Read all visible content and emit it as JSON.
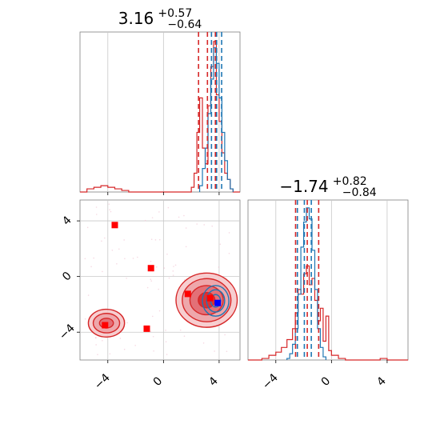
{
  "chart_data": {
    "type": "corner",
    "panels": [
      {
        "id": "top-left",
        "type": "histogram",
        "title": {
          "base": "3.16",
          "plus": "+0.57",
          "minus": "−0.64"
        },
        "xlim": [
          -6,
          5.5
        ],
        "show_y_ticks": false,
        "grid": true,
        "series": [
          {
            "name": "",
            "color": "#d62728",
            "bin_edges": [
              -6,
              -5.5,
              -5,
              -4.5,
              -4,
              -3.5,
              -3,
              -2.5,
              -2,
              -1.5,
              -1,
              -0.5,
              0,
              0.5,
              1,
              1.5,
              2,
              2.2,
              2.4,
              2.6,
              2.8,
              3.0,
              3.2,
              3.4,
              3.6,
              3.8,
              4.0,
              4.2,
              4.4,
              4.6,
              4.8,
              5.0,
              5.5
            ],
            "heights": [
              0.0,
              0.02,
              0.03,
              0.04,
              0.03,
              0.02,
              0.01,
              0.0,
              0.0,
              0.0,
              0.0,
              0.0,
              0.0,
              0.0,
              0.0,
              0.0,
              0.03,
              0.12,
              0.38,
              0.6,
              0.28,
              0.18,
              0.55,
              0.8,
              0.96,
              0.62,
              0.45,
              0.25,
              0.12,
              0.08,
              0.02,
              0.0
            ]
          },
          {
            "name": "",
            "color": "#1f77b4",
            "bin_edges": [
              2.6,
              2.8,
              3.0,
              3.2,
              3.4,
              3.6,
              3.8,
              4.0,
              4.2,
              4.4,
              4.6,
              4.8,
              5.0
            ],
            "heights": [
              0.04,
              0.15,
              0.28,
              0.5,
              0.72,
              0.92,
              0.82,
              0.6,
              0.38,
              0.2,
              0.08,
              0.02
            ]
          }
        ],
        "quantile_lines": [
          {
            "x": 2.52,
            "color": "#d62728"
          },
          {
            "x": 3.16,
            "color": "#d62728"
          },
          {
            "x": 3.73,
            "color": "#d62728"
          },
          {
            "x": 3.45,
            "color": "#1f77b4"
          },
          {
            "x": 3.82,
            "color": "#1f77b4"
          },
          {
            "x": 4.18,
            "color": "#1f77b4"
          }
        ]
      },
      {
        "id": "bottom-left",
        "type": "scatter-contour",
        "xlim": [
          -6,
          5.5
        ],
        "ylim": [
          -6,
          5.5
        ],
        "x_ticks": [
          -4,
          0,
          4
        ],
        "x_tick_labels": [
          "−4",
          "0",
          "4"
        ],
        "y_ticks": [
          -4,
          0,
          4
        ],
        "y_tick_labels": [
          "−4",
          "0",
          "4"
        ],
        "grid": true,
        "markers": [
          {
            "x": -3.5,
            "y": 3.7,
            "color": "#ff0000"
          },
          {
            "x": -0.9,
            "y": 0.6,
            "color": "#ff0000"
          },
          {
            "x": 1.75,
            "y": -1.25,
            "color": "#ff0000"
          },
          {
            "x": 3.35,
            "y": -1.55,
            "color": "#ff0000"
          },
          {
            "x": -4.2,
            "y": -3.5,
            "color": "#ff0000"
          },
          {
            "x": -1.2,
            "y": -3.75,
            "color": "#ff0000"
          },
          {
            "x": 3.9,
            "y": -1.9,
            "color": "#0000ff"
          }
        ],
        "red_contours": [
          {
            "cx": 3.1,
            "cy": -1.7,
            "rx": [
              2.2,
              1.75,
              1.2,
              0.6
            ],
            "ry": [
              1.95,
              1.55,
              1.05,
              0.55
            ]
          },
          {
            "cx": -4.1,
            "cy": -3.35,
            "rx": [
              1.3,
              0.95,
              0.5
            ],
            "ry": [
              1.0,
              0.7,
              0.35
            ]
          }
        ],
        "blue_contours": [
          {
            "cx": 3.75,
            "cy": -1.75,
            "rx": [
              0.95,
              0.65,
              0.35
            ],
            "ry": [
              1.1,
              0.8,
              0.45
            ]
          }
        ]
      },
      {
        "id": "bottom-right",
        "type": "histogram",
        "title": {
          "base": "−1.74",
          "plus": "+0.82",
          "minus": "−0.84"
        },
        "xlim": [
          -6,
          5.5
        ],
        "x_ticks": [
          -4,
          0,
          4
        ],
        "x_tick_labels": [
          "−4",
          "0",
          "4"
        ],
        "show_y_ticks": false,
        "grid": true,
        "series": [
          {
            "name": "",
            "color": "#d62728",
            "bin_edges": [
              -6,
              -5,
              -4.5,
              -4.0,
              -3.6,
              -3.2,
              -2.8,
              -2.6,
              -2.4,
              -2.2,
              -2.0,
              -1.8,
              -1.6,
              -1.4,
              -1.2,
              -1.0,
              -0.8,
              -0.6,
              -0.4,
              -0.2,
              0.0,
              0.5,
              1.0,
              2.0,
              3.5,
              4.0,
              5.5
            ],
            "heights": [
              0.0,
              0.01,
              0.03,
              0.05,
              0.08,
              0.13,
              0.2,
              0.3,
              0.45,
              0.42,
              0.55,
              0.6,
              0.48,
              0.52,
              0.38,
              0.25,
              0.33,
              0.12,
              0.28,
              0.06,
              0.03,
              0.01,
              0.0,
              0.0,
              0.01,
              0.0
            ]
          },
          {
            "name": "",
            "color": "#1f77b4",
            "bin_edges": [
              -3.2,
              -3.0,
              -2.8,
              -2.6,
              -2.4,
              -2.2,
              -2.0,
              -1.8,
              -1.6,
              -1.4,
              -1.2,
              -1.0,
              -0.8,
              -0.6,
              -0.4
            ],
            "heights": [
              0.01,
              0.04,
              0.1,
              0.2,
              0.42,
              0.72,
              0.88,
              0.97,
              0.9,
              0.7,
              0.45,
              0.2,
              0.08,
              0.02
            ]
          }
        ],
        "quantile_lines": [
          {
            "x": -2.58,
            "color": "#d62728"
          },
          {
            "x": -1.74,
            "color": "#d62728"
          },
          {
            "x": -0.92,
            "color": "#d62728"
          },
          {
            "x": -2.45,
            "color": "#1f77b4"
          },
          {
            "x": -1.95,
            "color": "#1f77b4"
          },
          {
            "x": -1.45,
            "color": "#1f77b4"
          }
        ]
      }
    ]
  }
}
